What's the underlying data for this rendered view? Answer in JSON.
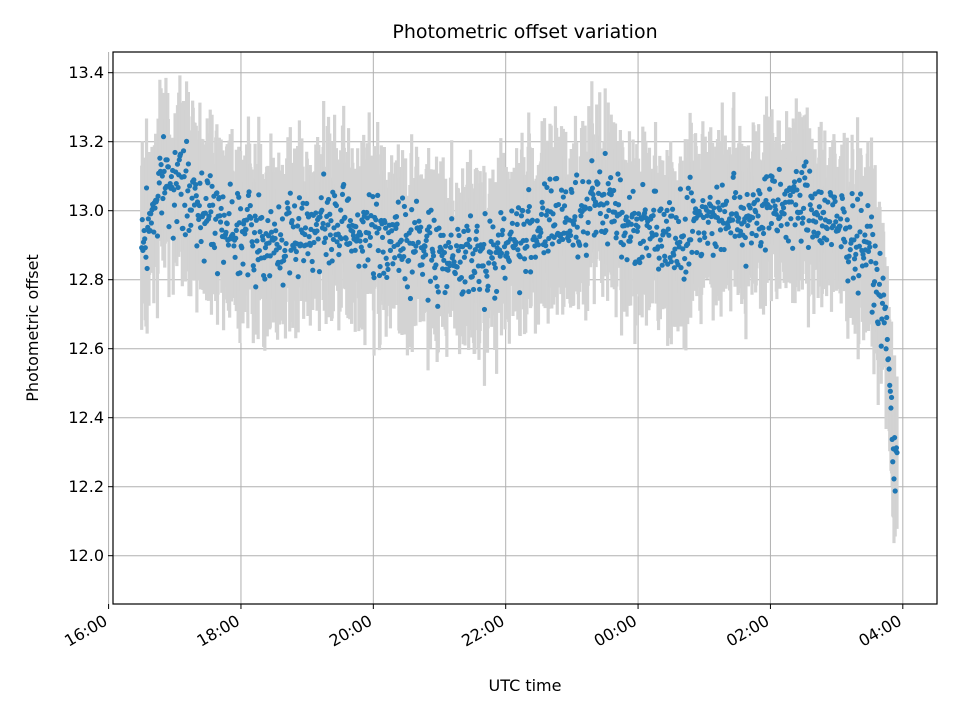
{
  "chart_data": {
    "type": "scatter",
    "title": "Photometric offset variation",
    "xlabel": "UTC time",
    "ylabel": "Photometric offset",
    "x_tick_labels": [
      "16:00",
      "18:00",
      "20:00",
      "22:00",
      "00:00",
      "02:00",
      "04:00"
    ],
    "y_tick_labels": [
      "12.0",
      "12.2",
      "12.4",
      "12.6",
      "12.8",
      "13.0",
      "13.2",
      "13.4"
    ],
    "ylim": [
      11.86,
      13.46
    ],
    "xlim": [
      "16:04",
      "04:31"
    ],
    "grid": true,
    "marker_color": "#1f77b4",
    "errorbar_color": "#d3d3d3",
    "summary_points": [
      {
        "x": "16:30",
        "y": 12.9
      },
      {
        "x": "16:50",
        "y": 13.1
      },
      {
        "x": "17:10",
        "y": 13.05
      },
      {
        "x": "17:30",
        "y": 13.0
      },
      {
        "x": "18:00",
        "y": 12.95
      },
      {
        "x": "18:30",
        "y": 12.9
      },
      {
        "x": "19:00",
        "y": 12.95
      },
      {
        "x": "19:30",
        "y": 12.95
      },
      {
        "x": "20:00",
        "y": 12.93
      },
      {
        "x": "20:30",
        "y": 12.9
      },
      {
        "x": "21:00",
        "y": 12.88
      },
      {
        "x": "21:30",
        "y": 12.85
      },
      {
        "x": "22:00",
        "y": 12.9
      },
      {
        "x": "22:30",
        "y": 12.95
      },
      {
        "x": "23:00",
        "y": 12.98
      },
      {
        "x": "23:30",
        "y": 13.02
      },
      {
        "x": "00:00",
        "y": 12.95
      },
      {
        "x": "00:30",
        "y": 12.93
      },
      {
        "x": "01:00",
        "y": 12.98
      },
      {
        "x": "01:30",
        "y": 12.98
      },
      {
        "x": "02:00",
        "y": 13.0
      },
      {
        "x": "02:30",
        "y": 13.02
      },
      {
        "x": "03:00",
        "y": 12.95
      },
      {
        "x": "03:30",
        "y": 12.9
      },
      {
        "x": "03:45",
        "y": 12.65
      },
      {
        "x": "03:52",
        "y": 12.3
      }
    ]
  }
}
